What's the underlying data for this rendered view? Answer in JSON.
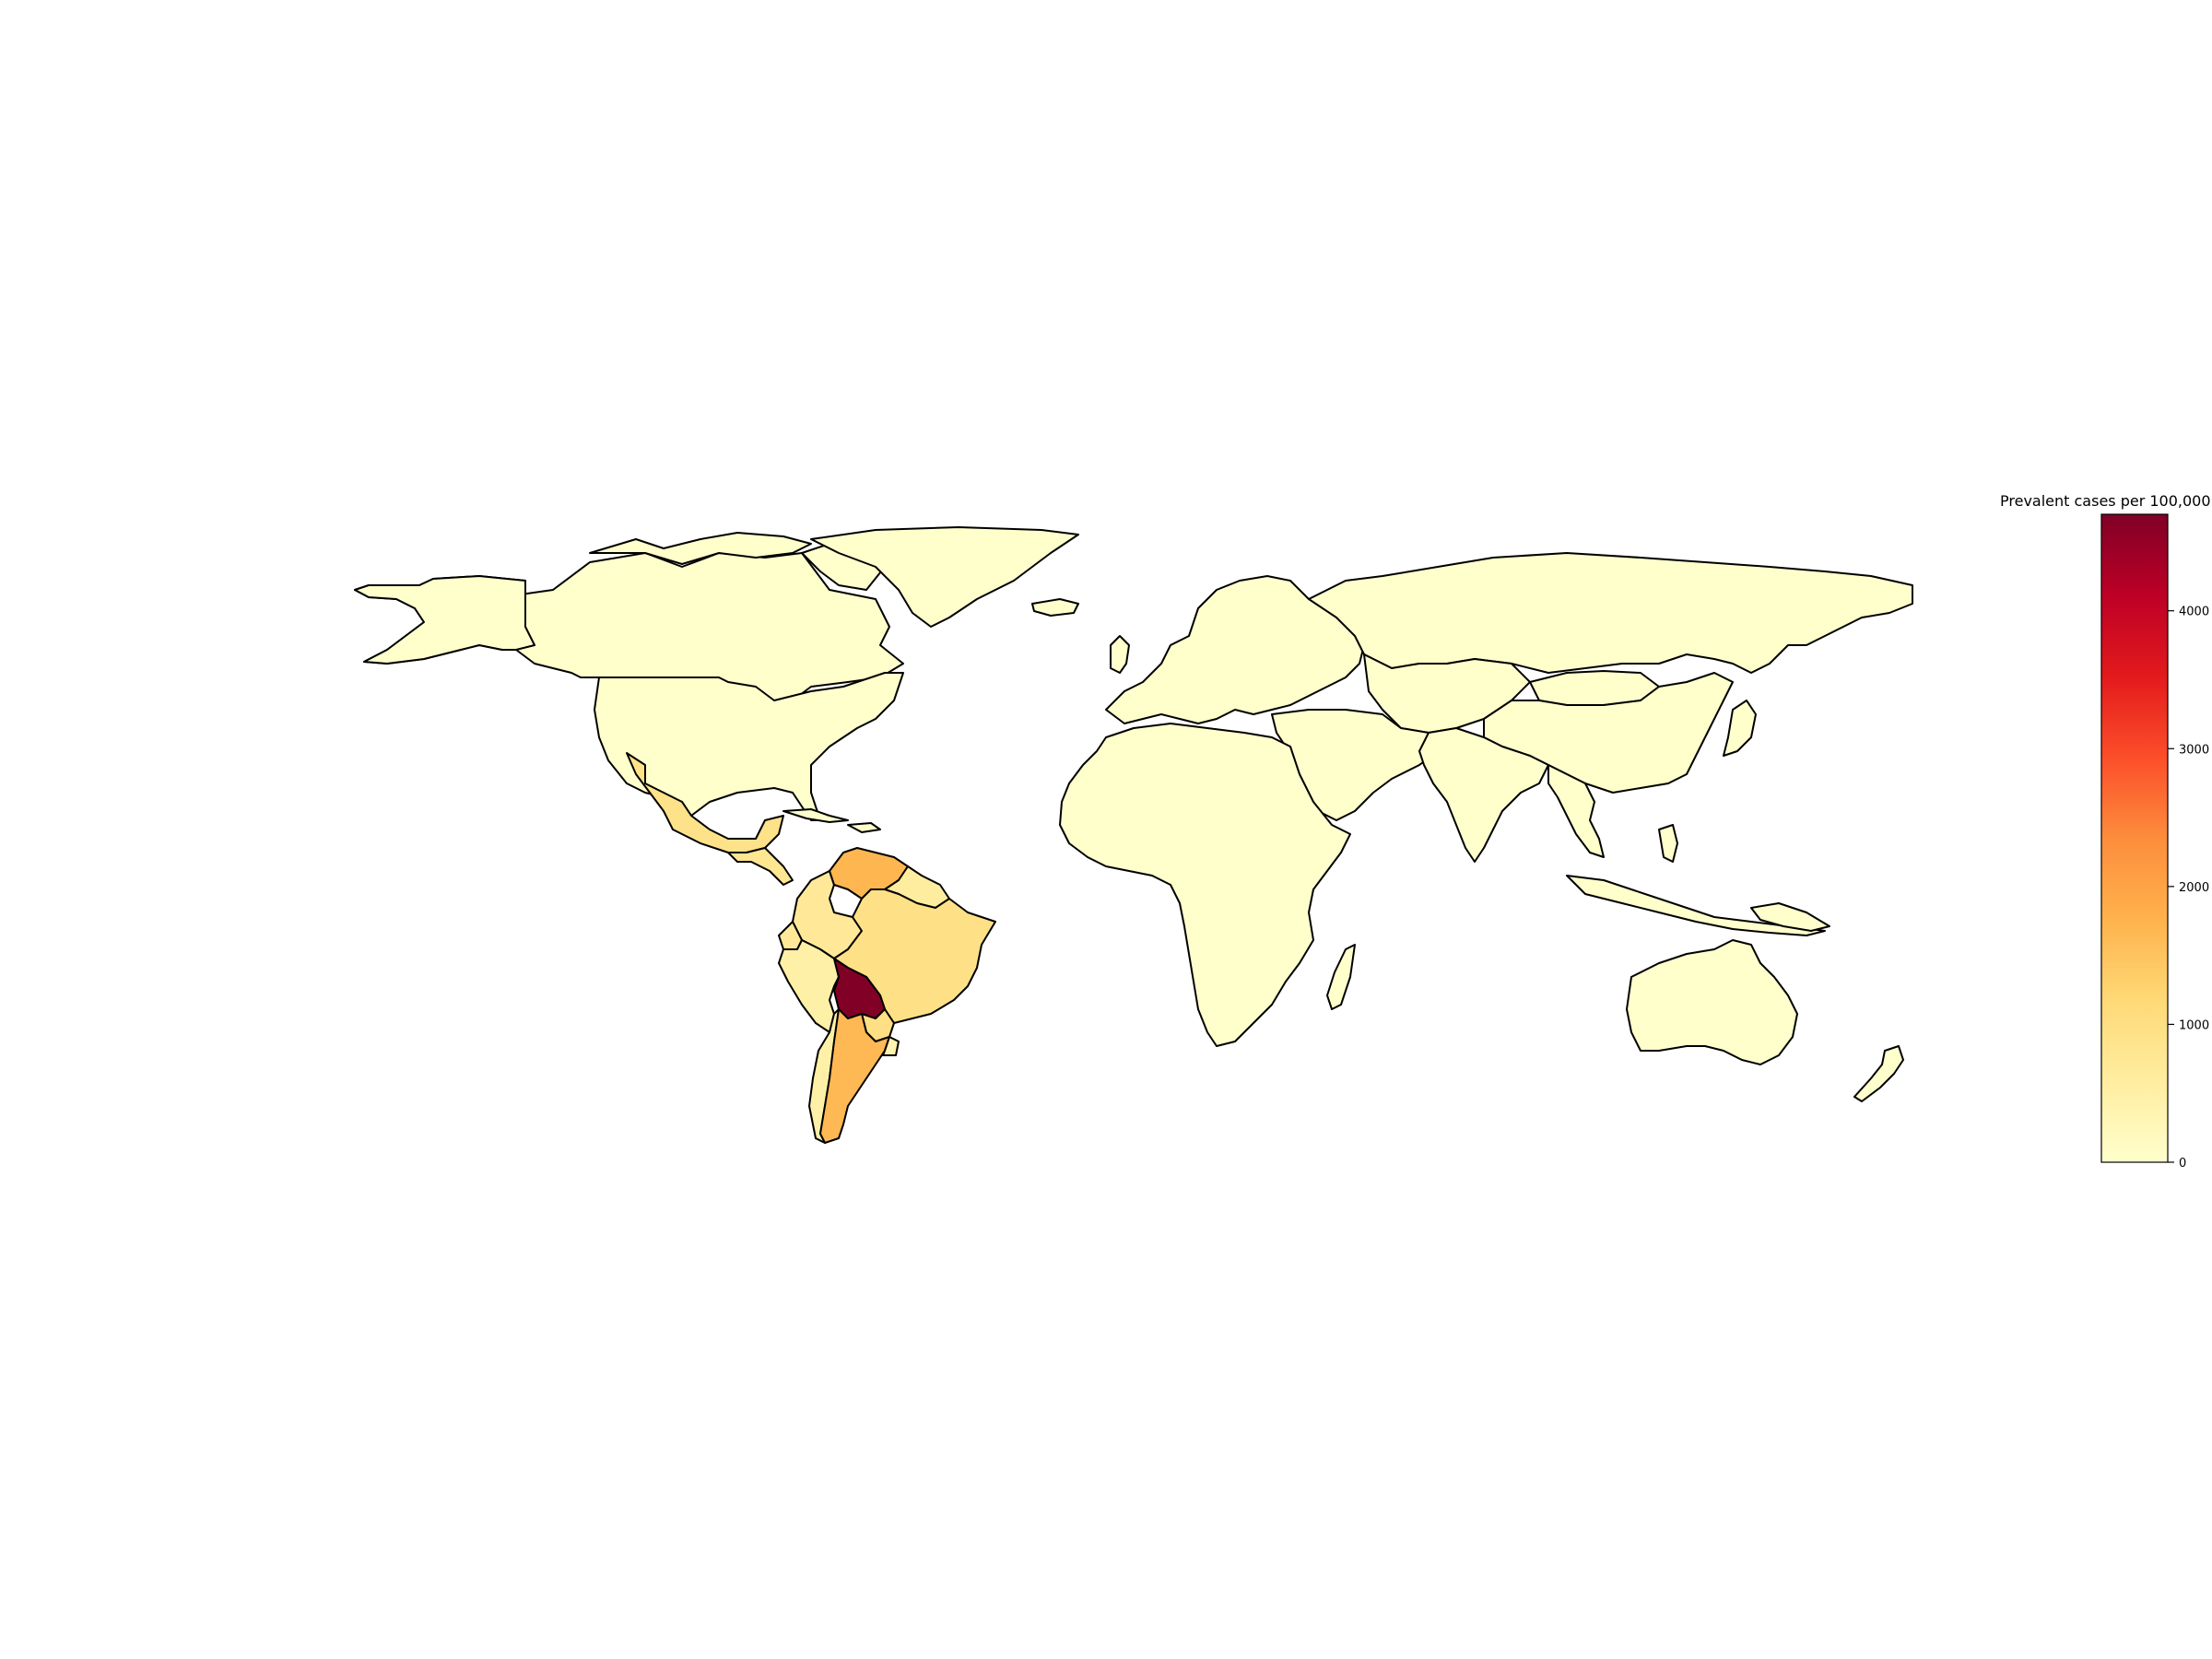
{
  "colorbar": {
    "title": "Prevalent cases per 100,000",
    "min": 0,
    "max": 4700,
    "ticks": [
      0,
      1000,
      2000,
      3000,
      4000
    ],
    "tick_labels": [
      "0",
      "1000",
      "2000",
      "3000",
      "4000"
    ],
    "colormap": "YlOrRd",
    "colors": [
      "#ffffcc",
      "#ffeda0",
      "#fed976",
      "#feb24c",
      "#fd8d3c",
      "#fc4e2a",
      "#e31a1c",
      "#bd0026",
      "#800026"
    ]
  },
  "chart_data": {
    "type": "choropleth",
    "measure": "Prevalent cases per 100,000",
    "default_value": 0,
    "regions": [
      {
        "name": "Bolivia",
        "value": 4700
      },
      {
        "name": "Argentina",
        "value": 1650
      },
      {
        "name": "Paraguay",
        "value": 1000
      },
      {
        "name": "Venezuela",
        "value": 1700
      },
      {
        "name": "Brazil",
        "value": 950
      },
      {
        "name": "Mexico",
        "value": 900
      },
      {
        "name": "Colombia",
        "value": 700
      },
      {
        "name": "Peru",
        "value": 500
      },
      {
        "name": "Chile",
        "value": 500
      },
      {
        "name": "Ecuador",
        "value": 700
      },
      {
        "name": "Guatemala",
        "value": 800
      },
      {
        "name": "Honduras",
        "value": 800
      },
      {
        "name": "El Salvador",
        "value": 800
      },
      {
        "name": "Nicaragua",
        "value": 800
      },
      {
        "name": "Uruguay",
        "value": 400
      },
      {
        "name": "Guyana",
        "value": 600
      },
      {
        "name": "Suriname",
        "value": 600
      }
    ]
  }
}
